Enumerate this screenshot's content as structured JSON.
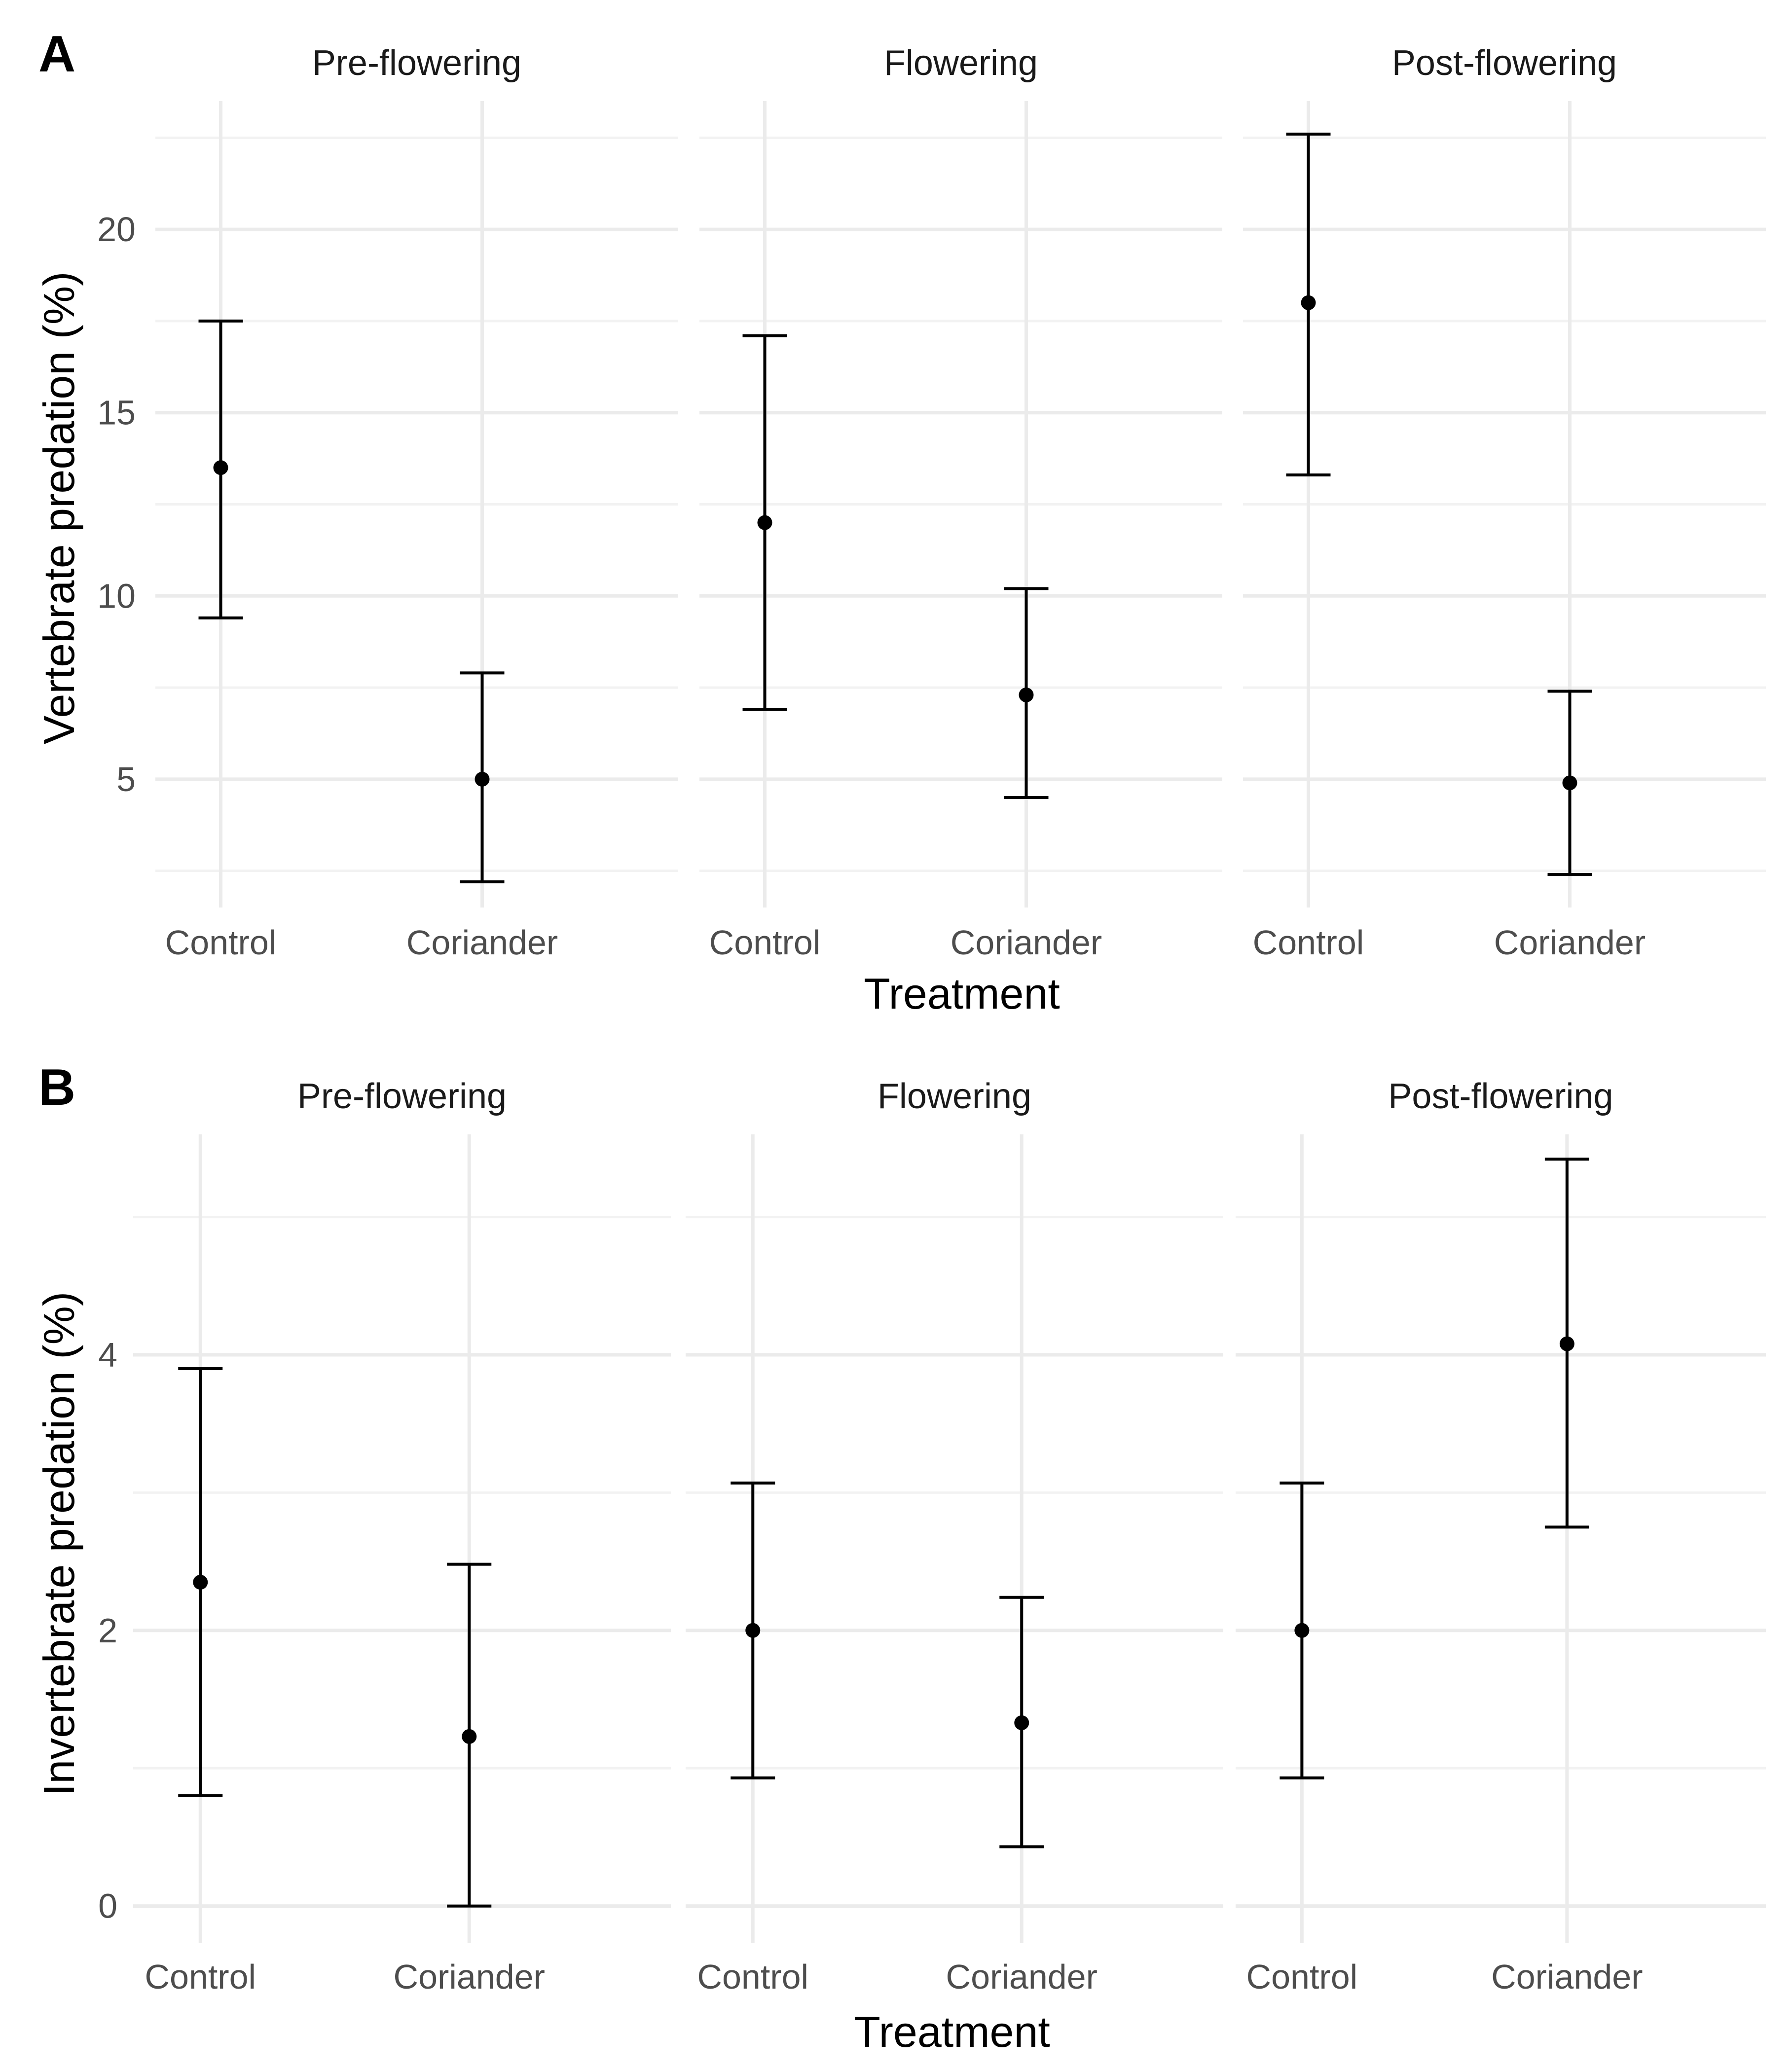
{
  "chart_data": [
    {
      "type": "scatter",
      "tag": "A",
      "title": "",
      "xlabel": "Treatment",
      "ylabel": "Vertebrate predation (%)",
      "categories": [
        "Control",
        "Coriander"
      ],
      "ylim": [
        1.5,
        23.5
      ],
      "yticks": [
        5,
        10,
        15,
        20
      ],
      "yminor": [
        2.5,
        7.5,
        12.5,
        17.5,
        22.5
      ],
      "grid": true,
      "facets": [
        {
          "title": "Pre-flowering",
          "points": [
            {
              "category": "Control",
              "mean": 13.5,
              "lower": 9.4,
              "upper": 17.5
            },
            {
              "category": "Coriander",
              "mean": 5.0,
              "lower": 2.2,
              "upper": 7.9
            }
          ]
        },
        {
          "title": "Flowering",
          "points": [
            {
              "category": "Control",
              "mean": 12.0,
              "lower": 6.9,
              "upper": 17.1
            },
            {
              "category": "Coriander",
              "mean": 7.3,
              "lower": 4.5,
              "upper": 10.2
            }
          ]
        },
        {
          "title": "Post-flowering",
          "points": [
            {
              "category": "Control",
              "mean": 18.0,
              "lower": 13.3,
              "upper": 22.6
            },
            {
              "category": "Coriander",
              "mean": 4.9,
              "lower": 2.4,
              "upper": 7.4
            }
          ]
        }
      ]
    },
    {
      "type": "scatter",
      "tag": "B",
      "title": "",
      "xlabel": "Treatment",
      "ylabel": "Invertebrate predation (%)",
      "categories": [
        "Control",
        "Coriander"
      ],
      "ylim": [
        -0.27,
        5.6
      ],
      "yticks": [
        0,
        2,
        4
      ],
      "yminor": [
        1,
        3,
        5
      ],
      "grid": true,
      "facets": [
        {
          "title": "Pre-flowering",
          "points": [
            {
              "category": "Control",
              "mean": 2.35,
              "lower": 0.8,
              "upper": 3.9
            },
            {
              "category": "Coriander",
              "mean": 1.23,
              "lower": 0.0,
              "upper": 2.48
            }
          ]
        },
        {
          "title": "Flowering",
          "points": [
            {
              "category": "Control",
              "mean": 2.0,
              "lower": 0.93,
              "upper": 3.07
            },
            {
              "category": "Coriander",
              "mean": 1.33,
              "lower": 0.43,
              "upper": 2.24
            }
          ]
        },
        {
          "title": "Post-flowering",
          "points": [
            {
              "category": "Control",
              "mean": 2.0,
              "lower": 0.93,
              "upper": 3.07
            },
            {
              "category": "Coriander",
              "mean": 4.08,
              "lower": 2.75,
              "upper": 5.42
            }
          ]
        }
      ]
    }
  ]
}
